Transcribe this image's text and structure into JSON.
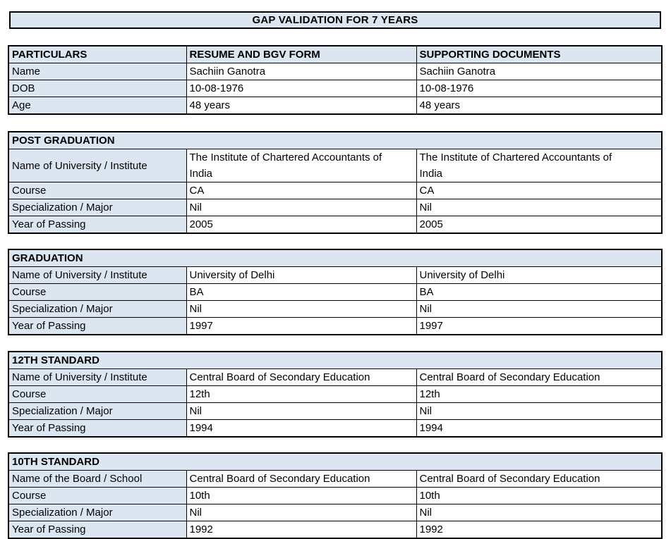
{
  "title": "GAP VALIDATION FOR 7 YEARS",
  "colors": {
    "shaded_cell_bg": "#dce6f1",
    "border": "#000000",
    "page_bg": "#ffffff",
    "text": "#000000"
  },
  "particulars": {
    "headers": [
      "PARTICULARS",
      "RESUME AND BGV FORM",
      "SUPPORTING DOCUMENTS"
    ],
    "rows": [
      {
        "label": "Name",
        "resume": "Sachiin Ganotra",
        "documents": "Sachiin Ganotra"
      },
      {
        "label": "DOB",
        "resume": "10-08-1976",
        "documents": "10-08-1976"
      },
      {
        "label": "Age",
        "resume": "48 years",
        "documents": "48 years"
      }
    ]
  },
  "sections": [
    {
      "title": "POST GRADUATION",
      "rows": [
        {
          "label": "Name of University / Institute",
          "resume": "The Institute of Chartered Accountants of India",
          "documents": "The Institute of Chartered Accountants of India"
        },
        {
          "label": "Course",
          "resume": "CA",
          "documents": "CA"
        },
        {
          "label": "Specialization / Major",
          "resume": "Nil",
          "documents": "Nil"
        },
        {
          "label": "Year of Passing",
          "resume": "2005",
          "documents": "2005"
        }
      ]
    },
    {
      "title": "GRADUATION",
      "rows": [
        {
          "label": "Name of University / Institute",
          "resume": "University of Delhi",
          "documents": "University of Delhi"
        },
        {
          "label": "Course",
          "resume": "BA",
          "documents": "BA"
        },
        {
          "label": "Specialization / Major",
          "resume": "Nil",
          "documents": "Nil"
        },
        {
          "label": "Year of Passing",
          "resume": "1997",
          "documents": "1997"
        }
      ]
    },
    {
      "title": "12TH STANDARD",
      "rows": [
        {
          "label": "Name of University / Institute",
          "resume": "Central Board of Secondary Education",
          "documents": "Central Board of Secondary Education"
        },
        {
          "label": "Course",
          "resume": "12th",
          "documents": "12th"
        },
        {
          "label": "Specialization / Major",
          "resume": "Nil",
          "documents": "Nil"
        },
        {
          "label": "Year of Passing",
          "resume": "1994",
          "documents": "1994"
        }
      ]
    },
    {
      "title": "10TH STANDARD",
      "rows": [
        {
          "label": "Name of the Board / School",
          "resume": "Central Board of Secondary Education",
          "documents": "Central Board of Secondary Education"
        },
        {
          "label": "Course",
          "resume": "10th",
          "documents": "10th"
        },
        {
          "label": "Specialization / Major",
          "resume": "Nil",
          "documents": "Nil"
        },
        {
          "label": "Year of Passing",
          "resume": "1992",
          "documents": "1992"
        }
      ]
    }
  ]
}
